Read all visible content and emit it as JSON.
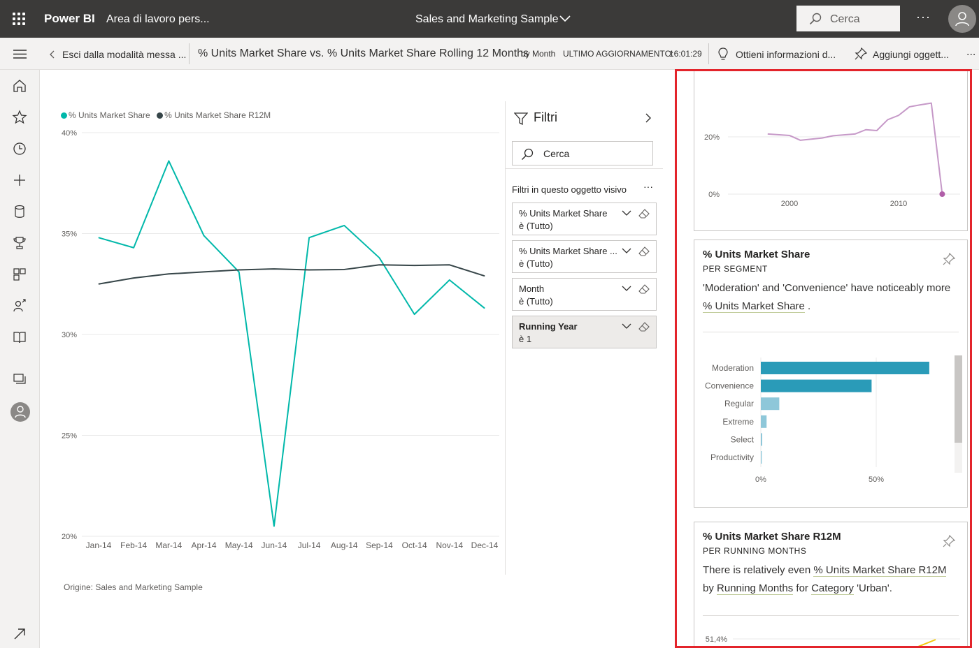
{
  "topbar": {
    "brand": "Power BI",
    "workspace": "Area di lavoro pers...",
    "report_title": "Sales and Marketing Sample",
    "search_placeholder": "Cerca",
    "more_label": "···"
  },
  "commandbar": {
    "back_label": "Esci dalla modalità messa ...",
    "visual_title": "% Units Market Share vs. % Units Market Share Rolling 12 Months",
    "by_label": "by Month",
    "updated_label": "ULTIMO AGGIORNAMENTO:",
    "updated_time": "16:01:29",
    "insights_label": "Ottieni informazioni d...",
    "pin_label": "Aggiungi oggett...",
    "more_label": "..."
  },
  "nav": {
    "items": [
      "home",
      "favorites",
      "recent",
      "create",
      "datasets",
      "goals",
      "apps",
      "shared",
      "learn",
      "workspaces",
      "profile",
      "expand"
    ]
  },
  "chart_data": {
    "type": "line",
    "categories": [
      "Jan-14",
      "Feb-14",
      "Mar-14",
      "Apr-14",
      "May-14",
      "Jun-14",
      "Jul-14",
      "Aug-14",
      "Sep-14",
      "Oct-14",
      "Nov-14",
      "Dec-14"
    ],
    "series": [
      {
        "name": "% Units Market Share",
        "color": "#01b8aa",
        "values": [
          34.8,
          34.3,
          38.6,
          34.9,
          33.1,
          20.5,
          34.8,
          35.4,
          33.8,
          31.0,
          32.7,
          31.3
        ]
      },
      {
        "name": "% Units Market Share R12M",
        "color": "#374649",
        "values": [
          32.5,
          32.8,
          33.0,
          33.1,
          33.2,
          33.25,
          33.2,
          33.22,
          33.45,
          33.42,
          33.45,
          32.9
        ]
      }
    ],
    "y_ticks": [
      "40%",
      "35%",
      "30%",
      "25%",
      "20%"
    ],
    "ylim": [
      20,
      40
    ],
    "grid": true,
    "legend": "top-left",
    "source_label": "Origine: Sales and Marketing Sample"
  },
  "filters": {
    "title": "Filtri",
    "search_placeholder": "Cerca",
    "section_label": "Filtri in questo oggetto visivo",
    "section_more": "···",
    "items": [
      {
        "name": "% Units Market Share",
        "value": "è (Tutto)"
      },
      {
        "name": "% Units Market Share ...",
        "value": "è (Tutto)"
      },
      {
        "name": "Month",
        "value": "è (Tutto)"
      },
      {
        "name": "Running Year",
        "value": "è 1"
      }
    ]
  },
  "insights": {
    "top_chart": {
      "type": "line",
      "color": "#c699c8",
      "x_ticks": [
        "2000",
        "2010"
      ],
      "y_ticks": [
        "20%",
        "0%"
      ],
      "x": [
        1998,
        2000,
        2001,
        2003,
        2004,
        2006,
        2007,
        2008,
        2009,
        2010,
        2011,
        2012,
        2013,
        2014
      ],
      "values": [
        21,
        20.5,
        18.8,
        19.6,
        20.4,
        21.0,
        22.5,
        22.2,
        26,
        27.5,
        30.5,
        31.2,
        31.8,
        0
      ]
    },
    "card1": {
      "title": "% Units Market Share",
      "subtitle": "PER SEGMENT",
      "text_a": "'Moderation' and 'Convenience' have noticeably more ",
      "text_link": "% Units Market Share",
      "text_b": " .",
      "chart": {
        "type": "bar",
        "categories": [
          "Moderation",
          "Convenience",
          "Regular",
          "Extreme",
          "Select",
          "Productivity"
        ],
        "values": [
          73,
          48,
          8,
          2.5,
          0.6,
          0.4
        ],
        "x_ticks": [
          "0%",
          "50%"
        ],
        "colors": [
          "#2a9bb8",
          "#2a9bb8",
          "#8ec7d9",
          "#8ec7d9",
          "#8ec7d9",
          "#8ec7d9"
        ]
      }
    },
    "card2": {
      "title": "% Units Market Share R12M",
      "subtitle": "PER RUNNING MONTHS",
      "text_a": "There is relatively even ",
      "text_link1": "% Units Market Share R12M",
      "text_b": " by ",
      "text_link2": "Running Months",
      "text_c": " for ",
      "text_link3": "Category",
      "text_d": " 'Urban'.",
      "y_tick": "51,4%"
    }
  }
}
